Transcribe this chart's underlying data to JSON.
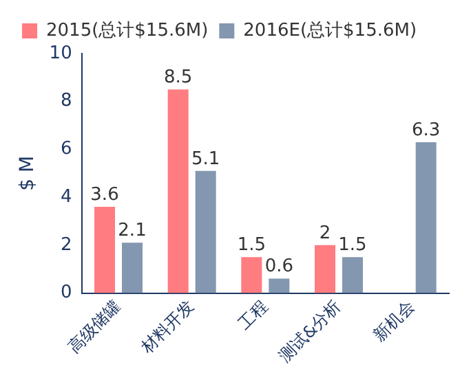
{
  "chart_data": {
    "type": "bar",
    "categories": [
      "高级储罐",
      "材料开发",
      "工程",
      "测试&分析",
      "新机会"
    ],
    "series": [
      {
        "name": "2015(总计$15.6M)",
        "color": "#ff7c80",
        "values": [
          3.6,
          8.5,
          1.5,
          2,
          null
        ]
      },
      {
        "name": "2016E(总计$15.6M)",
        "color": "#8497b0",
        "values": [
          2.1,
          5.1,
          0.6,
          1.5,
          6.3
        ]
      }
    ],
    "ylabel": "$ M",
    "ylim": [
      0,
      10
    ],
    "yticks": [
      0,
      2,
      4,
      6,
      8,
      10
    ],
    "grid": false,
    "legend": "top",
    "data_labels": true
  }
}
